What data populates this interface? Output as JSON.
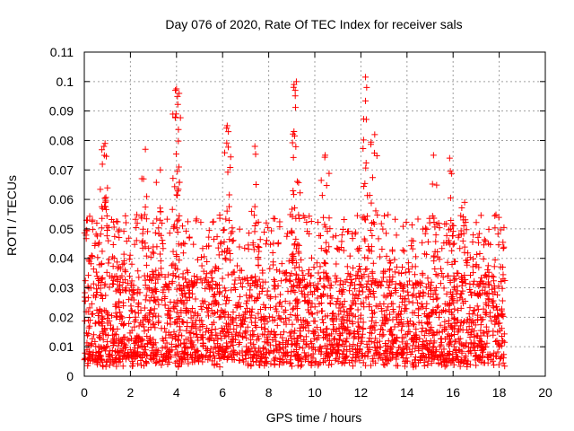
{
  "chart_data": {
    "type": "scatter",
    "title": "Day 076 of 2020, Rate Of TEC Index for receiver sals",
    "xlabel": "GPS time / hours",
    "ylabel": "ROTI / TECUs",
    "xlim": [
      0,
      20
    ],
    "ylim": [
      0,
      0.11
    ],
    "x_ticks": [
      0,
      2,
      4,
      6,
      8,
      10,
      12,
      14,
      16,
      18,
      20
    ],
    "x_tick_labels": [
      "0",
      "2",
      "4",
      "6",
      "8",
      "10",
      "12",
      "14",
      "16",
      "18",
      "20"
    ],
    "y_ticks": [
      0,
      0.01,
      0.02,
      0.03,
      0.04,
      0.05,
      0.06,
      0.07,
      0.08,
      0.09,
      0.1,
      0.11
    ],
    "y_tick_labels": [
      "0",
      "0.01",
      "0.02",
      "0.03",
      "0.04",
      "0.05",
      "0.06",
      "0.07",
      "0.08",
      "0.09",
      "0.1",
      "0.11"
    ],
    "grid": true,
    "marker": "plus",
    "series_color": "#ff0000",
    "series": [
      {
        "name": "ROTI",
        "x_range": [
          0,
          18.25
        ],
        "typical_range": [
          0.005,
          0.035
        ],
        "max_points": [
          [
            0.85,
            0.078
          ],
          [
            0.9,
            0.079
          ],
          [
            2.65,
            0.077
          ],
          [
            3.3,
            0.07
          ],
          [
            3.95,
            0.097
          ],
          [
            4.0,
            0.0975
          ],
          [
            3.98,
            0.089
          ],
          [
            6.2,
            0.085
          ],
          [
            6.25,
            0.083
          ],
          [
            7.4,
            0.078
          ],
          [
            9.1,
            0.099
          ],
          [
            9.2,
            0.1
          ],
          [
            9.15,
            0.097
          ],
          [
            10.45,
            0.075
          ],
          [
            12.2,
            0.1015
          ],
          [
            12.25,
            0.098
          ],
          [
            12.6,
            0.082
          ],
          [
            15.15,
            0.075
          ],
          [
            15.85,
            0.074
          ],
          [
            16.5,
            0.059
          ]
        ]
      }
    ]
  }
}
